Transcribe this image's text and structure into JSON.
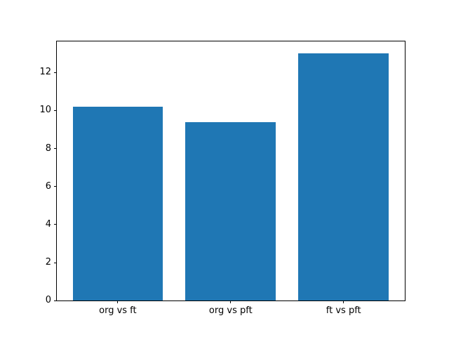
{
  "chart_data": {
    "type": "bar",
    "title": "",
    "xlabel": "",
    "ylabel": "",
    "categories": [
      "org vs ft",
      "org vs pft",
      "ft vs pft"
    ],
    "values": [
      10.2,
      9.4,
      13.0
    ],
    "yticks": [
      0,
      2,
      4,
      6,
      8,
      10,
      12
    ],
    "ylim": [
      0,
      13.65
    ],
    "bar_color": "#1f77b4",
    "background_color": "#ffffff",
    "spine_color": "#000000",
    "grid": false,
    "legend": false
  }
}
